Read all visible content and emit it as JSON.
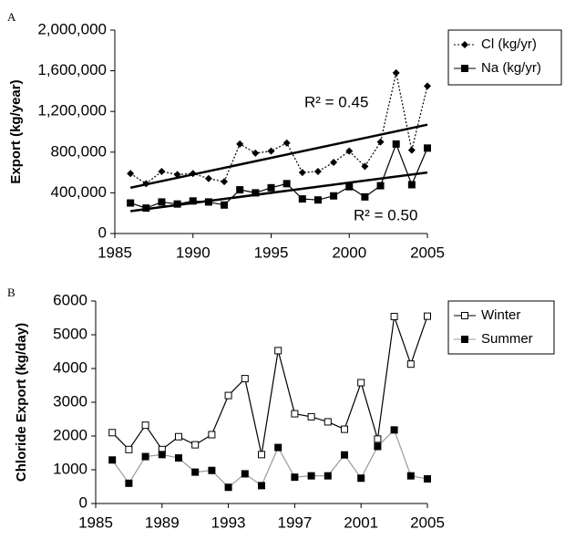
{
  "chart_data": [
    {
      "type": "line",
      "panel_label": "A",
      "y_label": "Export (kg/year)",
      "x": [
        1986,
        1987,
        1988,
        1989,
        1990,
        1991,
        1992,
        1993,
        1994,
        1995,
        1996,
        1997,
        1998,
        1999,
        2000,
        2001,
        2002,
        2003,
        2004,
        2005
      ],
      "xlim": [
        1985,
        2005
      ],
      "xticks": [
        1985,
        1990,
        1995,
        2000,
        2005
      ],
      "ylim": [
        0,
        2000000
      ],
      "yticks": [
        0,
        {
          "value": 400000,
          "label": "400,000"
        },
        {
          "value": 800000,
          "label": "800,000"
        },
        {
          "value": 1200000,
          "label": "1,200,000"
        },
        {
          "value": 1600000,
          "label": "1,600,000"
        },
        {
          "value": 2000000,
          "label": "2,000,000"
        }
      ],
      "series": [
        {
          "name": "Cl (kg/yr)",
          "color": "#000000",
          "line_color": "#000000",
          "dash": "dotted",
          "marker": "diamond",
          "values": [
            590000,
            490000,
            610000,
            580000,
            590000,
            540000,
            510000,
            880000,
            790000,
            810000,
            890000,
            600000,
            610000,
            700000,
            810000,
            660000,
            900000,
            1580000,
            820000,
            1450000
          ]
        },
        {
          "name": "Na (kg/yr)",
          "color": "#000000",
          "line_color": "#000000",
          "dash": "solid",
          "marker": "square",
          "values": [
            300000,
            250000,
            310000,
            290000,
            320000,
            310000,
            280000,
            430000,
            400000,
            450000,
            490000,
            340000,
            330000,
            370000,
            460000,
            360000,
            470000,
            880000,
            480000,
            840000
          ]
        }
      ],
      "trendlines": [
        {
          "x": [
            1986,
            2005
          ],
          "values": [
            450000,
            1070000
          ]
        },
        {
          "x": [
            1986,
            2005
          ],
          "values": [
            220000,
            600000
          ]
        }
      ],
      "annotations": [
        "R² = 0.45",
        "R² = 0.50"
      ]
    },
    {
      "type": "line",
      "panel_label": "B",
      "y_label": "Chloride Export (kg/day)",
      "x": [
        1986,
        1987,
        1988,
        1989,
        1990,
        1991,
        1992,
        1993,
        1994,
        1995,
        1996,
        1997,
        1998,
        1999,
        2000,
        2001,
        2002,
        2003,
        2004,
        2005
      ],
      "xlim": [
        1985,
        2005
      ],
      "xticks": [
        1985,
        1989,
        1993,
        1997,
        2001,
        2005
      ],
      "ylim": [
        0,
        6000
      ],
      "yticks": [
        0,
        1000,
        2000,
        3000,
        4000,
        5000,
        6000
      ],
      "series": [
        {
          "name": "Winter",
          "color": "#000000",
          "line_color": "#000000",
          "dash": "solid",
          "marker": "open-square",
          "values": [
            2100,
            1600,
            2320,
            1600,
            1980,
            1740,
            2040,
            3200,
            3700,
            1450,
            4530,
            2660,
            2570,
            2420,
            2200,
            3580,
            1910,
            5540,
            4130,
            5550
          ]
        },
        {
          "name": "Summer",
          "color": "#000000",
          "line_color": "#9a9a9a",
          "dash": "solid",
          "marker": "square",
          "values": [
            1290,
            600,
            1390,
            1450,
            1350,
            930,
            980,
            480,
            880,
            530,
            1660,
            780,
            820,
            820,
            1440,
            750,
            1690,
            2180,
            820,
            730
          ]
        }
      ]
    }
  ]
}
